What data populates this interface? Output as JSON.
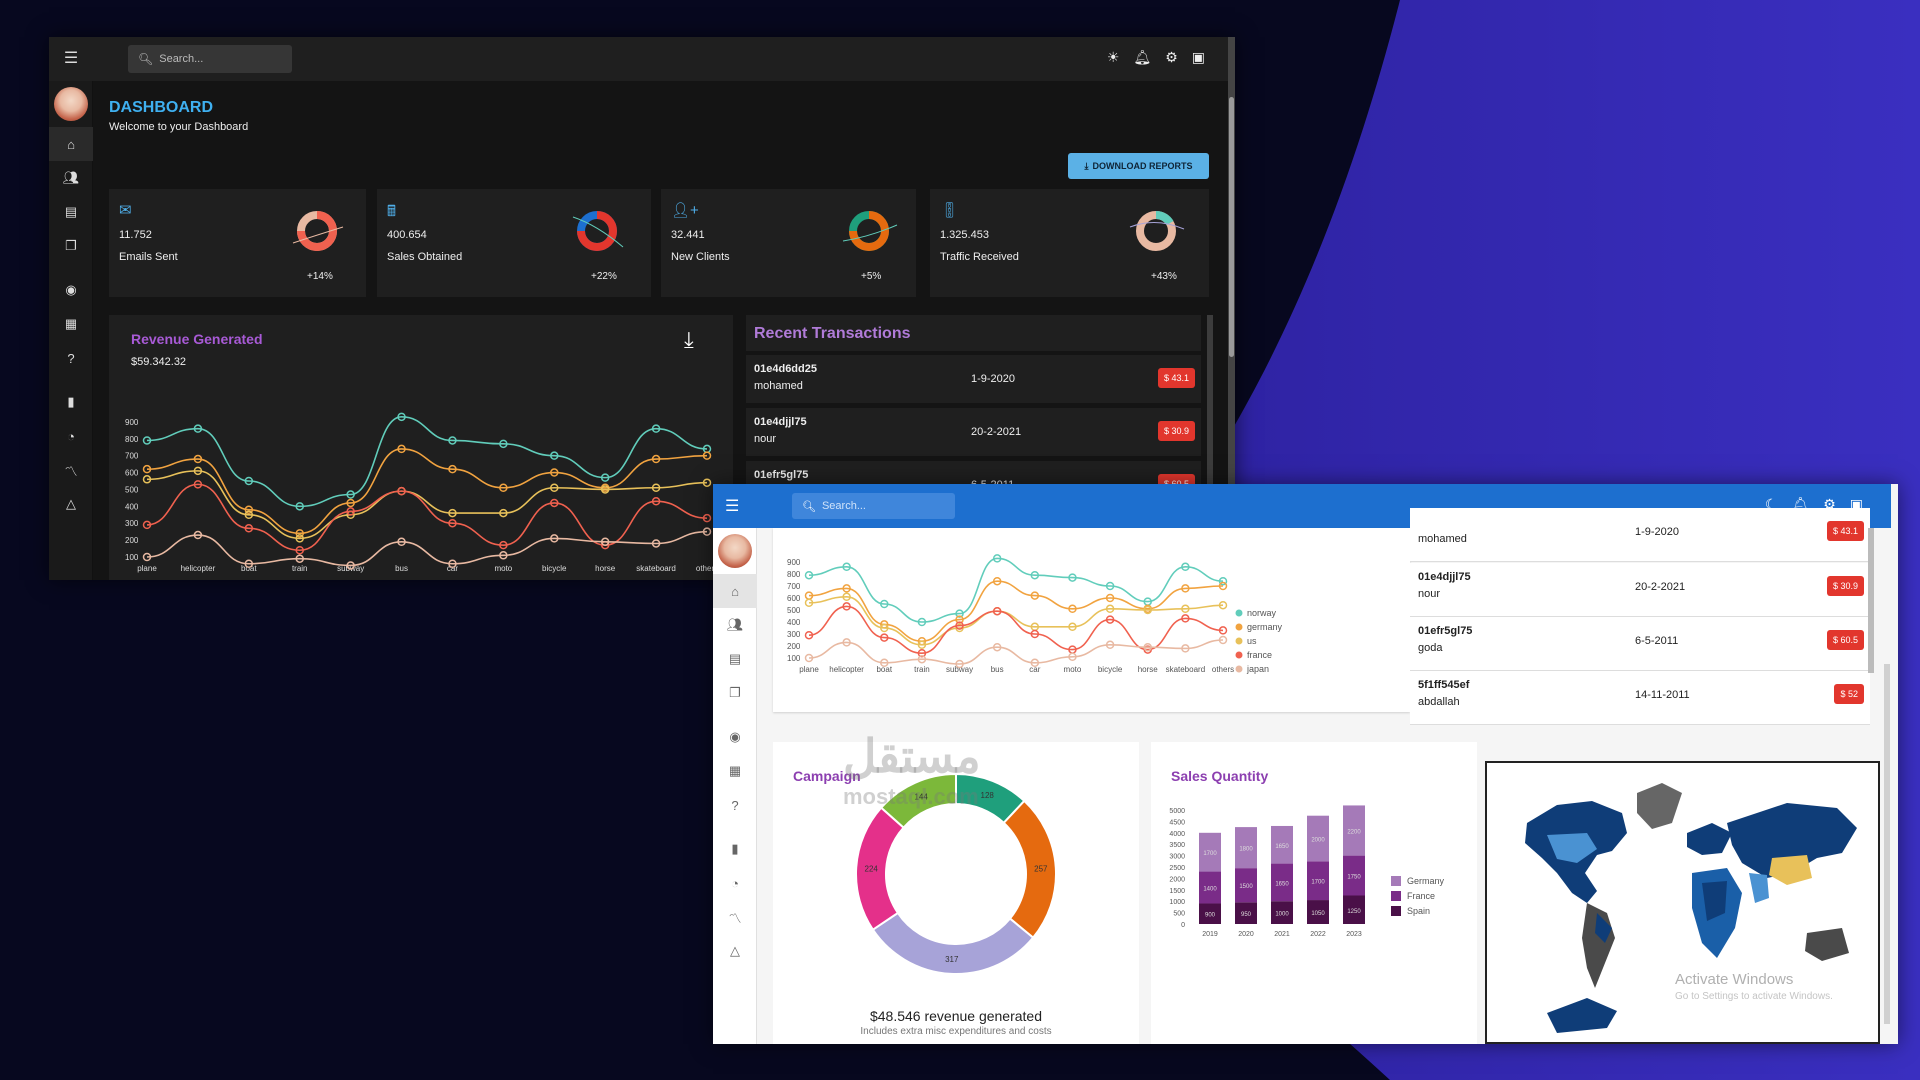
{
  "dark": {
    "search_placeholder": "Search...",
    "title": "DASHBOARD",
    "subtitle": "Welcome to your Dashboard",
    "download_label": "DOWNLOAD REPORTS",
    "stats": [
      {
        "value": "11.752",
        "label": "Emails Sent",
        "pct": "+14%",
        "icon": "mail-icon"
      },
      {
        "value": "400.654",
        "label": "Sales Obtained",
        "pct": "+22%",
        "icon": "point-of-sale-icon"
      },
      {
        "value": "32.441",
        "label": "New Clients",
        "pct": "+5%",
        "icon": "person-add-icon"
      },
      {
        "value": "1.325.453",
        "label": "Traffic Received",
        "pct": "+43%",
        "icon": "traffic-icon"
      }
    ],
    "revenue_title": "Revenue Generated",
    "revenue_amount": "$59.342.32",
    "transactions_title": "Recent Transactions",
    "transactions": [
      {
        "id": "01e4d6dd25",
        "user": "mohamed",
        "date": "1-9-2020",
        "amount": "$ 43.1"
      },
      {
        "id": "01e4djjl75",
        "user": "nour",
        "date": "20-2-2021",
        "amount": "$ 30.9"
      },
      {
        "id": "01efr5gl75",
        "user": "",
        "date": "6-5-2011",
        "amount": "$ 60.5"
      }
    ]
  },
  "light": {
    "search_placeholder": "Search...",
    "transactions": [
      {
        "id": "",
        "user": "mohamed",
        "date": "1-9-2020",
        "amount": "$ 43.1"
      },
      {
        "id": "01e4djjl75",
        "user": "nour",
        "date": "20-2-2021",
        "amount": "$ 30.9"
      },
      {
        "id": "01efr5gl75",
        "user": "goda",
        "date": "6-5-2011",
        "amount": "$ 60.5"
      },
      {
        "id": "5f1ff545ef",
        "user": "abdallah",
        "date": "14-11-2011",
        "amount": "$ 52"
      }
    ],
    "campaign_title": "Campaign",
    "campaign_revenue": "$48.546 revenue generated",
    "campaign_note": "Includes extra misc expenditures and costs",
    "sales_title": "Sales Quantity",
    "windows_activate": "Activate Windows",
    "windows_activate_sub": "Go to Settings to activate Windows."
  },
  "watermark": {
    "logo": "مستقل",
    "url": "mostaql.com"
  },
  "colors": {
    "dark_bg": "#141414",
    "card_dark": "#1f1f1f",
    "accent_blue": "#3fb0f0",
    "purple": "#a85ad6",
    "red_badge": "#e2362d",
    "light_topbar": "#1d6fcf",
    "series": {
      "norway": "#61cdbb",
      "germany": "#f1a340",
      "us": "#e8c15a",
      "france": "#f0614f",
      "japan": "#e8b9a2"
    }
  },
  "chart_data": [
    {
      "type": "line",
      "title": "Revenue Generated",
      "categories": [
        "plane",
        "helicopter",
        "boat",
        "train",
        "subway",
        "bus",
        "car",
        "moto",
        "bicycle",
        "horse",
        "skateboard",
        "others"
      ],
      "yticks": [
        100,
        200,
        300,
        400,
        500,
        600,
        700,
        800,
        900
      ],
      "ylim": [
        100,
        1000
      ],
      "series": [
        {
          "name": "norway",
          "color": "#61cdbb",
          "values": [
            790,
            860,
            550,
            400,
            470,
            930,
            790,
            770,
            700,
            570,
            860,
            740
          ]
        },
        {
          "name": "germany",
          "color": "#f1a340",
          "values": [
            620,
            680,
            380,
            240,
            420,
            740,
            620,
            510,
            600,
            510,
            680,
            700
          ]
        },
        {
          "name": "us",
          "color": "#e8c15a",
          "values": [
            560,
            610,
            350,
            210,
            350,
            490,
            360,
            360,
            510,
            500,
            510,
            540
          ]
        },
        {
          "name": "france",
          "color": "#f0614f",
          "values": [
            290,
            530,
            270,
            140,
            370,
            490,
            300,
            170,
            420,
            170,
            430,
            330
          ]
        },
        {
          "name": "japan",
          "color": "#e8b9a2",
          "values": [
            100,
            230,
            60,
            90,
            50,
            190,
            60,
            110,
            210,
            190,
            180,
            250
          ]
        }
      ],
      "legend": [
        "norway",
        "germany",
        "us",
        "france",
        "japan"
      ]
    },
    {
      "type": "pie",
      "title": "Campaign",
      "slices": [
        {
          "label": "128",
          "value": 128,
          "color": "#1f9f7c"
        },
        {
          "label": "257",
          "value": 257,
          "color": "#e56a0f"
        },
        {
          "label": "317",
          "value": 317,
          "color": "#a7a3d8"
        },
        {
          "label": "224",
          "value": 224,
          "color": "#e4308a"
        },
        {
          "label": "144",
          "value": 144,
          "color": "#7cb83a"
        }
      ]
    },
    {
      "type": "bar",
      "title": "Sales Quantity",
      "categories": [
        "2019",
        "2020",
        "2021",
        "2022",
        "2023"
      ],
      "yticks": [
        0,
        500,
        1000,
        1500,
        2000,
        2500,
        3000,
        3500,
        4000,
        4500,
        5000
      ],
      "ylim": [
        0,
        5000
      ],
      "series": [
        {
          "name": "Spain",
          "color": "#4a1048",
          "values": [
            900,
            950,
            1000,
            1050,
            1250
          ]
        },
        {
          "name": "France",
          "color": "#7a2c88",
          "values": [
            1400,
            1500,
            1650,
            1700,
            1750
          ]
        },
        {
          "name": "Germany",
          "color": "#a57ab8",
          "values": [
            1700,
            1800,
            1650,
            2000,
            2200
          ]
        }
      ],
      "legend": [
        "Germany",
        "France",
        "Spain"
      ]
    }
  ]
}
